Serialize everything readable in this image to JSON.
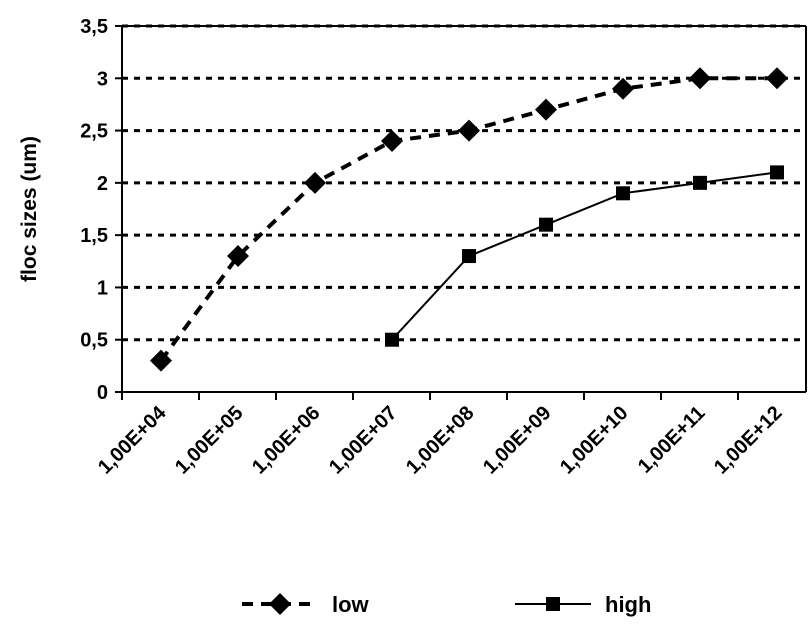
{
  "chart_data": {
    "type": "line",
    "title": "",
    "xlabel": "",
    "ylabel": "floc sizes (um)",
    "categories": [
      "1,00E+04",
      "1,00E+05",
      "1,00E+06",
      "1,00E+07",
      "1,00E+08",
      "1,00E+09",
      "1,00E+10",
      "1,00E+11",
      "1,00E+12"
    ],
    "yticks": [
      "0",
      "0,5",
      "1",
      "1,5",
      "2",
      "2,5",
      "3",
      "3,5"
    ],
    "ylim": [
      0,
      3.5
    ],
    "grid": "horizontal dotted",
    "legend": "bottom",
    "series": [
      {
        "name": "low",
        "color": "#000000",
        "line": "dashed",
        "marker": "diamond",
        "values": [
          0.3,
          1.3,
          2.0,
          2.4,
          2.5,
          2.7,
          2.9,
          3.0,
          3.0
        ]
      },
      {
        "name": "high",
        "color": "#000000",
        "line": "solid",
        "marker": "square",
        "values": [
          null,
          null,
          null,
          0.5,
          1.3,
          1.6,
          1.9,
          2.0,
          2.1
        ]
      }
    ]
  }
}
